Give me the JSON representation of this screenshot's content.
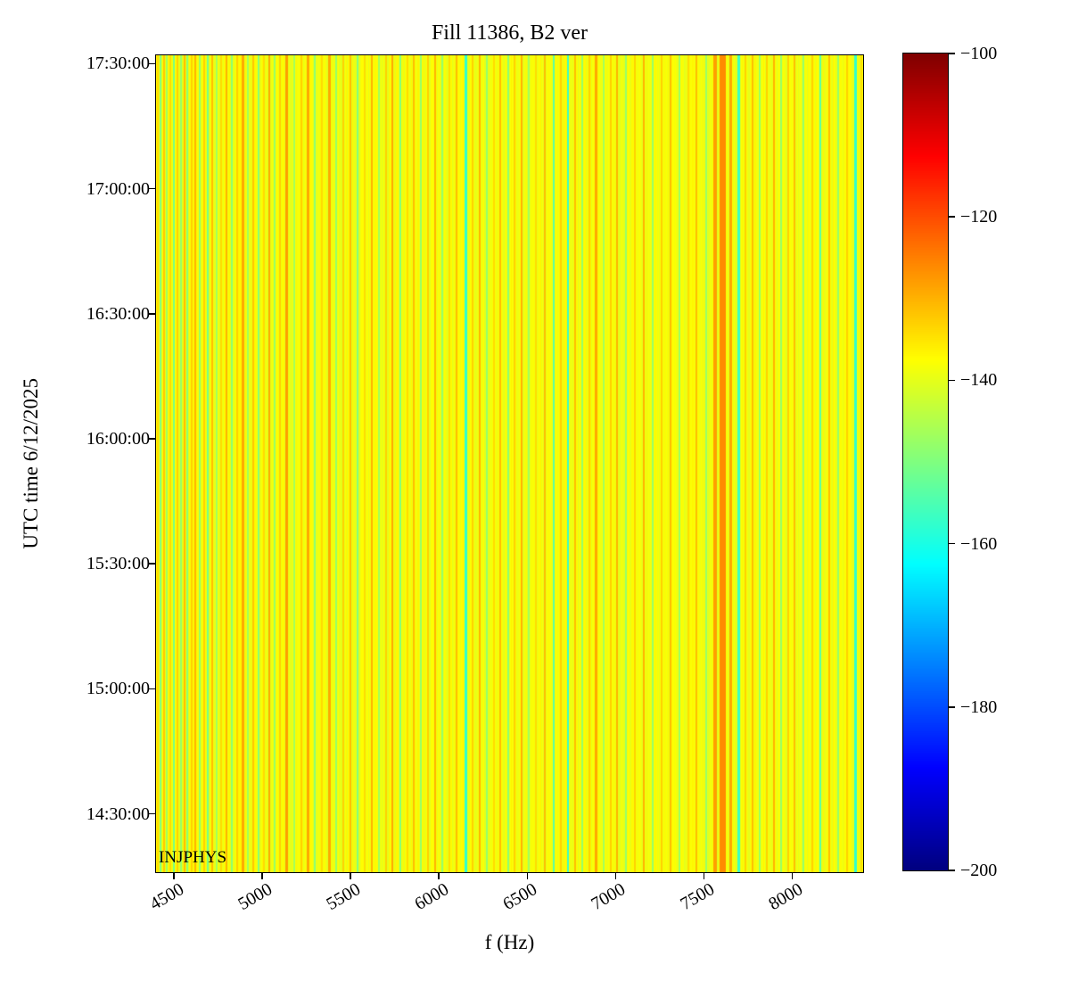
{
  "chart_data": {
    "type": "heatmap",
    "title": "Fill 11386, B2 ver",
    "xlabel": "f (Hz)",
    "ylabel": "UTC time 6/12/2025",
    "annotation": "INJPHYS",
    "colormap": "jet",
    "x_range": [
      4400,
      8400
    ],
    "x_ticks": [
      4500,
      5000,
      5500,
      6000,
      6500,
      7000,
      7500,
      8000
    ],
    "y_time_range": [
      "14:16:00",
      "17:32:00"
    ],
    "y_ticks": [
      "17:30:00",
      "17:00:00",
      "16:30:00",
      "16:00:00",
      "15:30:00",
      "15:00:00",
      "14:30:00"
    ],
    "colorbar": {
      "min": -200,
      "max": -100,
      "ticks": [
        -100,
        -120,
        -140,
        -160,
        -180,
        -200
      ]
    },
    "base_db": -138.5,
    "noise_db": 2.0,
    "stripes_f_db_w": [
      [
        4410,
        -134,
        12
      ],
      [
        4428,
        -150,
        12
      ],
      [
        4446,
        -132,
        10
      ],
      [
        4464,
        -147,
        12
      ],
      [
        4482,
        -134,
        10
      ],
      [
        4500,
        -151,
        12
      ],
      [
        4520,
        -133,
        10
      ],
      [
        4540,
        -148,
        12
      ],
      [
        4560,
        -131,
        10
      ],
      [
        4580,
        -149,
        12
      ],
      [
        4602,
        -133,
        10
      ],
      [
        4624,
        -130,
        12
      ],
      [
        4648,
        -148,
        12
      ],
      [
        4672,
        -133,
        10
      ],
      [
        4696,
        -151,
        12
      ],
      [
        4720,
        -131,
        12
      ],
      [
        4745,
        -147,
        10
      ],
      [
        4770,
        -134,
        10
      ],
      [
        4800,
        -130,
        12
      ],
      [
        4830,
        -149,
        12
      ],
      [
        4860,
        -133,
        10
      ],
      [
        4890,
        -129,
        13
      ],
      [
        4920,
        -147,
        10
      ],
      [
        4950,
        -132,
        10
      ],
      [
        4980,
        -150,
        12
      ],
      [
        5010,
        -134,
        10
      ],
      [
        5040,
        -129,
        12
      ],
      [
        5070,
        -148,
        10
      ],
      [
        5100,
        -133,
        10
      ],
      [
        5140,
        -128,
        14
      ],
      [
        5180,
        -147,
        10
      ],
      [
        5220,
        -133,
        10
      ],
      [
        5260,
        -129,
        13
      ],
      [
        5300,
        -149,
        10
      ],
      [
        5340,
        -134,
        10
      ],
      [
        5380,
        -129,
        13
      ],
      [
        5420,
        -148,
        10
      ],
      [
        5460,
        -133,
        10
      ],
      [
        5500,
        -131,
        12
      ],
      [
        5540,
        -150,
        10
      ],
      [
        5580,
        -134,
        10
      ],
      [
        5620,
        -130,
        12
      ],
      [
        5660,
        -147,
        10
      ],
      [
        5700,
        -133,
        10
      ],
      [
        5740,
        -129,
        12
      ],
      [
        5780,
        -150,
        10
      ],
      [
        5820,
        -134,
        10
      ],
      [
        5860,
        -131,
        12
      ],
      [
        5900,
        -148,
        10
      ],
      [
        5940,
        -133,
        10
      ],
      [
        5980,
        -130,
        12
      ],
      [
        6020,
        -148,
        10
      ],
      [
        6060,
        -134,
        10
      ],
      [
        6100,
        -131,
        12
      ],
      [
        6150,
        -158,
        13
      ],
      [
        6190,
        -133,
        10
      ],
      [
        6230,
        -130,
        12
      ],
      [
        6270,
        -148,
        10
      ],
      [
        6310,
        -134,
        10
      ],
      [
        6350,
        -131,
        12
      ],
      [
        6390,
        -149,
        10
      ],
      [
        6430,
        -133,
        10
      ],
      [
        6470,
        -130,
        12
      ],
      [
        6510,
        -147,
        10
      ],
      [
        6550,
        -134,
        10
      ],
      [
        6600,
        -131,
        12
      ],
      [
        6650,
        -154,
        10
      ],
      [
        6690,
        -133,
        10
      ],
      [
        6730,
        -157,
        12
      ],
      [
        6770,
        -131,
        12
      ],
      [
        6810,
        -148,
        10
      ],
      [
        6850,
        -133,
        10
      ],
      [
        6890,
        -129,
        13
      ],
      [
        6930,
        -147,
        10
      ],
      [
        6970,
        -133,
        10
      ],
      [
        7010,
        -130,
        12
      ],
      [
        7060,
        -148,
        10
      ],
      [
        7110,
        -133,
        10
      ],
      [
        7160,
        -130,
        12
      ],
      [
        7210,
        -148,
        10
      ],
      [
        7260,
        -133,
        10
      ],
      [
        7310,
        -131,
        12
      ],
      [
        7360,
        -148,
        10
      ],
      [
        7410,
        -134,
        10
      ],
      [
        7460,
        -131,
        12
      ],
      [
        7510,
        -148,
        10
      ],
      [
        7560,
        -128,
        18
      ],
      [
        7605,
        -126,
        34
      ],
      [
        7650,
        -129,
        16
      ],
      [
        7695,
        -157,
        13
      ],
      [
        7735,
        -133,
        10
      ],
      [
        7775,
        -131,
        12
      ],
      [
        7815,
        -148,
        10
      ],
      [
        7855,
        -133,
        10
      ],
      [
        7895,
        -130,
        12
      ],
      [
        7935,
        -148,
        10
      ],
      [
        7975,
        -133,
        10
      ],
      [
        8015,
        -131,
        12
      ],
      [
        8060,
        -148,
        10
      ],
      [
        8110,
        -133,
        10
      ],
      [
        8160,
        -154,
        10
      ],
      [
        8210,
        -131,
        12
      ],
      [
        8260,
        -148,
        10
      ],
      [
        8310,
        -133,
        10
      ],
      [
        8356,
        -158,
        13
      ],
      [
        8390,
        -134,
        10
      ]
    ]
  },
  "colors": {
    "background": "#ffffff",
    "axis": "#000000",
    "text": "#000000"
  }
}
